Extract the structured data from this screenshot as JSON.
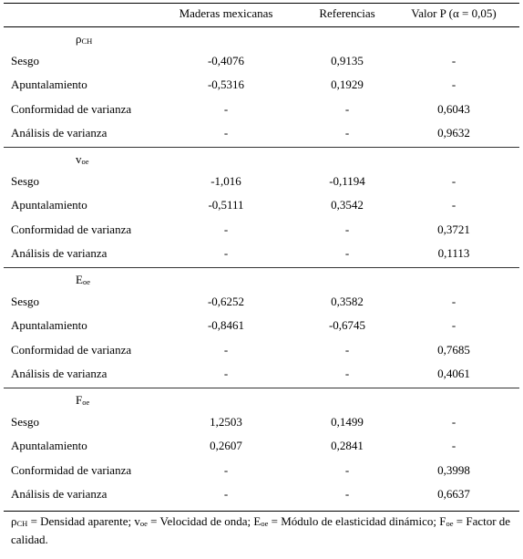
{
  "header": {
    "col1": "",
    "col2": "Maderas mexicanas",
    "col3": "Referencias",
    "col4": "Valor P (α = 0,05)"
  },
  "sections": [
    {
      "symbol": "ρ",
      "subscript": "CH",
      "rows": [
        {
          "label": "Sesgo",
          "mex": "-0,4076",
          "ref": "0,9135",
          "p": "-"
        },
        {
          "label": "Apuntalamiento",
          "mex": "-0,5316",
          "ref": "0,1929",
          "p": "-"
        },
        {
          "label": "Conformidad de varianza",
          "mex": "-",
          "ref": "-",
          "p": "0,6043"
        },
        {
          "label": "Análisis de varianza",
          "mex": "-",
          "ref": "-",
          "p": "0,9632"
        }
      ]
    },
    {
      "symbol": "v",
      "subscript": "oe",
      "rows": [
        {
          "label": "Sesgo",
          "mex": "-1,016",
          "ref": "-0,1194",
          "p": "-"
        },
        {
          "label": "Apuntalamiento",
          "mex": "-0,5111",
          "ref": "0,3542",
          "p": "-"
        },
        {
          "label": "Conformidad de varianza",
          "mex": "-",
          "ref": "-",
          "p": "0,3721"
        },
        {
          "label": "Análisis de varianza",
          "mex": "-",
          "ref": "-",
          "p": "0,1113"
        }
      ]
    },
    {
      "symbol": "E",
      "subscript": "oe",
      "rows": [
        {
          "label": "Sesgo",
          "mex": "-0,6252",
          "ref": "0,3582",
          "p": "-"
        },
        {
          "label": "Apuntalamiento",
          "mex": "-0,8461",
          "ref": "-0,6745",
          "p": "-"
        },
        {
          "label": "Conformidad de varianza",
          "mex": "-",
          "ref": "-",
          "p": "0,7685"
        },
        {
          "label": "Análisis de varianza",
          "mex": "-",
          "ref": "-",
          "p": "0,4061"
        }
      ]
    },
    {
      "symbol": "F",
      "subscript": "oe",
      "rows": [
        {
          "label": "Sesgo",
          "mex": "1,2503",
          "ref": "0,1499",
          "p": "-"
        },
        {
          "label": "Apuntalamiento",
          "mex": "0,2607",
          "ref": "0,2841",
          "p": "-"
        },
        {
          "label": "Conformidad de varianza",
          "mex": "-",
          "ref": "-",
          "p": "0,3998"
        },
        {
          "label": "Análisis de varianza",
          "mex": "-",
          "ref": "-",
          "p": "0,6637"
        }
      ]
    }
  ],
  "footnote": {
    "rho_sym": "ρ",
    "rho_sub": "CH",
    "rho_text": " = Densidad aparente; ",
    "v_sym": "v",
    "v_sub": "oe",
    "v_text": " = Velocidad de onda; ",
    "e_sym": "E",
    "e_sub": "oe",
    "e_text": " = Módulo de elasticidad dinámico; ",
    "f_sym": "F",
    "f_sub": "oe",
    "f_text": " = Factor de calidad."
  }
}
